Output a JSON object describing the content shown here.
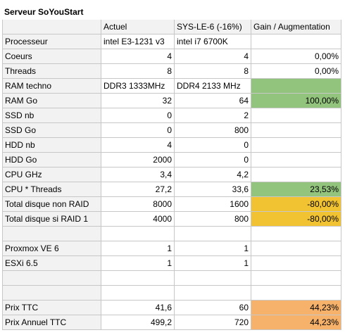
{
  "sheet_title": "Serveur SoYouStart",
  "headers": [
    "",
    "Actuel",
    "SYS-LE-6 (-16%)",
    "Gain / Augmentation"
  ],
  "rows": [
    {
      "label": "Processeur",
      "actuel": "intel E3-1231 v3",
      "sys": "intel i7 6700K",
      "gain": "",
      "gain_color": ""
    },
    {
      "label": "Coeurs",
      "actuel": "4",
      "sys": "4",
      "gain": "0,00%",
      "gain_color": ""
    },
    {
      "label": "Threads",
      "actuel": "8",
      "sys": "8",
      "gain": "0,00%",
      "gain_color": ""
    },
    {
      "label": "RAM techno",
      "actuel": "DDR3 1333MHz",
      "sys": "DDR4 2133 MHz",
      "gain": "",
      "gain_color": "#93c47d"
    },
    {
      "label": "RAM Go",
      "actuel": "32",
      "sys": "64",
      "gain": "100,00%",
      "gain_color": "#93c47d"
    },
    {
      "label": "SSD nb",
      "actuel": "0",
      "sys": "2",
      "gain": "",
      "gain_color": ""
    },
    {
      "label": "SSD Go",
      "actuel": "0",
      "sys": "800",
      "gain": "",
      "gain_color": ""
    },
    {
      "label": "HDD nb",
      "actuel": "4",
      "sys": "0",
      "gain": "",
      "gain_color": ""
    },
    {
      "label": "HDD Go",
      "actuel": "2000",
      "sys": "0",
      "gain": "",
      "gain_color": ""
    },
    {
      "label": "CPU GHz",
      "actuel": "3,4",
      "sys": "4,2",
      "gain": "",
      "gain_color": ""
    },
    {
      "label": "CPU * Threads",
      "actuel": "27,2",
      "sys": "33,6",
      "gain": "23,53%",
      "gain_color": "#93c47d"
    },
    {
      "label": "Total disque non RAID",
      "actuel": "8000",
      "sys": "1600",
      "gain": "-80,00%",
      "gain_color": "#f1c232"
    },
    {
      "label": "Total disque si RAID 1",
      "actuel": "4000",
      "sys": "800",
      "gain": "-80,00%",
      "gain_color": "#f1c232"
    },
    {
      "label": "",
      "actuel": "",
      "sys": "",
      "gain": "",
      "gain_color": ""
    },
    {
      "label": "Proxmox VE 6",
      "actuel": "1",
      "sys": "1",
      "gain": "",
      "gain_color": ""
    },
    {
      "label": "ESXi 6.5",
      "actuel": "1",
      "sys": "1",
      "gain": "",
      "gain_color": ""
    },
    {
      "label": "",
      "actuel": "",
      "sys": "",
      "gain": "",
      "gain_color": ""
    },
    {
      "label": "",
      "actuel": "",
      "sys": "",
      "gain": "",
      "gain_color": ""
    },
    {
      "label": "Prix TTC",
      "actuel": "41,6",
      "sys": "60",
      "gain": "44,23%",
      "gain_color": "#f6b26b"
    },
    {
      "label": "Prix Annuel TTC",
      "actuel": "499,2",
      "sys": "720",
      "gain": "44,23%",
      "gain_color": "#f6b26b"
    }
  ]
}
